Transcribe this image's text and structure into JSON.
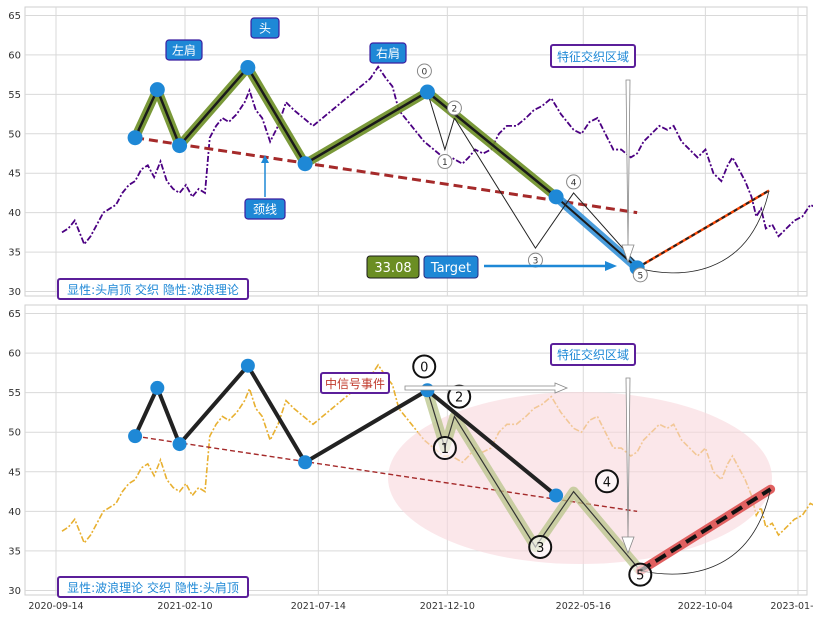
{
  "chart_data": [
    {
      "type": "line",
      "panel": "top",
      "ylim": [
        29.5,
        66
      ],
      "yticks": [
        30,
        35,
        40,
        45,
        50,
        55,
        60,
        65
      ],
      "grid": true,
      "price_series": {
        "name": "",
        "style": "dash-dot",
        "color": "#4b0082",
        "points": [
          [
            0,
            37.5
          ],
          [
            4,
            38
          ],
          [
            8,
            39
          ],
          [
            11,
            37.5
          ],
          [
            14,
            36
          ],
          [
            18,
            37
          ],
          [
            22,
            38.5
          ],
          [
            26,
            40
          ],
          [
            30,
            40.5
          ],
          [
            34,
            41
          ],
          [
            38,
            42.5
          ],
          [
            42,
            43.5
          ],
          [
            46,
            44
          ],
          [
            50,
            45.5
          ],
          [
            54,
            46
          ],
          [
            58,
            44.5
          ],
          [
            62,
            46.5
          ],
          [
            66,
            44
          ],
          [
            70,
            43
          ],
          [
            74,
            42.5
          ],
          [
            78,
            43.5
          ],
          [
            82,
            42
          ],
          [
            86,
            43
          ],
          [
            90,
            42.5
          ],
          [
            93,
            49.5
          ],
          [
            97,
            51
          ],
          [
            101,
            52
          ],
          [
            105,
            51.5
          ],
          [
            110,
            52.5
          ],
          [
            115,
            54
          ],
          [
            118,
            55.5
          ],
          [
            122,
            53
          ],
          [
            126,
            52
          ],
          [
            131,
            49
          ],
          [
            136,
            51
          ],
          [
            141,
            54
          ],
          [
            146,
            53
          ],
          [
            152,
            52
          ],
          [
            158,
            51
          ],
          [
            164,
            52
          ],
          [
            170,
            53
          ],
          [
            176,
            54
          ],
          [
            182,
            55
          ],
          [
            188,
            56
          ],
          [
            194,
            57
          ],
          [
            199,
            58.5
          ],
          [
            204,
            57
          ],
          [
            208,
            56
          ],
          [
            212,
            53
          ],
          [
            216,
            52
          ],
          [
            220,
            51
          ],
          [
            224,
            50
          ],
          [
            228,
            49
          ],
          [
            234,
            48
          ],
          [
            240,
            47
          ],
          [
            245,
            47
          ],
          [
            252,
            46.2
          ],
          [
            256,
            47
          ],
          [
            260,
            48
          ],
          [
            265,
            47.5
          ],
          [
            270,
            48
          ],
          [
            275,
            50
          ],
          [
            280,
            51
          ],
          [
            286,
            51
          ],
          [
            292,
            52
          ],
          [
            297,
            53
          ],
          [
            302,
            53.5
          ],
          [
            308,
            54.5
          ],
          [
            314,
            52.5
          ],
          [
            318,
            51.5
          ],
          [
            322,
            50.5
          ],
          [
            327,
            50
          ],
          [
            332,
            51.5
          ],
          [
            337,
            52
          ],
          [
            342,
            50
          ],
          [
            347,
            48
          ],
          [
            352,
            48
          ],
          [
            358,
            47
          ],
          [
            362,
            47.5
          ],
          [
            366,
            49
          ],
          [
            371,
            50
          ],
          [
            376,
            51
          ],
          [
            381,
            50.5
          ],
          [
            385,
            51
          ],
          [
            390,
            49
          ],
          [
            395,
            48
          ],
          [
            400,
            47
          ],
          [
            405,
            48
          ],
          [
            410,
            45
          ],
          [
            415,
            44
          ],
          [
            419,
            46
          ],
          [
            422,
            47
          ],
          [
            426,
            45.5
          ],
          [
            430,
            44
          ],
          [
            434,
            42
          ],
          [
            437,
            39.5
          ],
          [
            440,
            40.5
          ],
          [
            443,
            38
          ],
          [
            447,
            38.5
          ],
          [
            451,
            37
          ],
          [
            456,
            38
          ],
          [
            461,
            39
          ],
          [
            466,
            39.5
          ],
          [
            471,
            41
          ],
          [
            476,
            40.5
          ],
          [
            481,
            41.5
          ],
          [
            485,
            42.5
          ],
          [
            489,
            41.5
          ],
          [
            493,
            39
          ],
          [
            497,
            36.5
          ],
          [
            502,
            35
          ],
          [
            506,
            33.5
          ],
          [
            509,
            32
          ]
        ]
      },
      "pattern": {
        "color": "#6b8e23",
        "points": [
          [
            46,
            49.5
          ],
          [
            60,
            55.6
          ],
          [
            74,
            48.5
          ],
          [
            117,
            58.4
          ],
          [
            153,
            46.2
          ],
          [
            230,
            55.3
          ],
          [
            311,
            42
          ],
          [
            362,
            33
          ]
        ]
      },
      "extra_leg": {
        "color": "#2a8cd6",
        "points": [
          [
            311,
            42
          ],
          [
            362,
            33
          ]
        ]
      },
      "neckline": {
        "color": "#a52a2a",
        "points": [
          [
            46,
            49.5
          ],
          [
            362,
            40
          ]
        ]
      },
      "wave_lines": [
        [
          [
            230,
            55.3
          ],
          [
            241,
            48
          ],
          [
            247,
            52
          ]
        ],
        [
          [
            247,
            52
          ],
          [
            298,
            35.5
          ],
          [
            322,
            42.5
          ],
          [
            364,
            33
          ]
        ]
      ],
      "projection": {
        "color": "#ff4500",
        "points": [
          [
            362,
            33
          ],
          [
            445,
            42.8
          ]
        ]
      },
      "arc": {
        "from": [
          362,
          33
        ],
        "to": [
          445,
          42.8
        ],
        "depth": 33.5
      },
      "markers": [
        [
          46,
          49.5
        ],
        [
          60,
          55.6
        ],
        [
          74,
          48.5
        ],
        [
          117,
          58.4
        ],
        [
          153,
          46.2
        ],
        [
          230,
          55.3
        ],
        [
          311,
          42
        ],
        [
          362,
          33
        ]
      ],
      "wave_labels": [
        {
          "text": "0",
          "x": 230,
          "y": 55.3
        },
        {
          "text": "1",
          "x": 241,
          "y": 48
        },
        {
          "text": "2",
          "x": 247,
          "y": 52
        },
        {
          "text": "3",
          "x": 298,
          "y": 35.5
        },
        {
          "text": "4",
          "x": 322,
          "y": 42.5
        },
        {
          "text": "5",
          "x": 364,
          "y": 33
        }
      ],
      "annotations": {
        "left_shoulder": "左肩",
        "head": "头",
        "right_shoulder": "右肩",
        "neckline": "颈线",
        "zone": "特征交织区域",
        "value": "33.08",
        "target": "Target"
      },
      "legend": "显性:头肩顶 交织 隐性:波浪理论"
    },
    {
      "type": "line",
      "panel": "bottom",
      "ylim": [
        29.5,
        66
      ],
      "yticks": [
        30,
        35,
        40,
        45,
        50,
        55,
        60,
        65
      ],
      "grid": true,
      "price_series": {
        "name": "",
        "style": "dash-dot",
        "color": "#e8b030"
      },
      "wave_series": {
        "color": "#222222",
        "points": [
          [
            230,
            55.3
          ],
          [
            241,
            48
          ],
          [
            247,
            52
          ],
          [
            298,
            35.5
          ],
          [
            322,
            42.5
          ],
          [
            364,
            32.5
          ]
        ]
      },
      "hs_series": {
        "color": "#222222",
        "points": [
          [
            46,
            49.5
          ],
          [
            60,
            55.6
          ],
          [
            74,
            48.5
          ],
          [
            117,
            58.4
          ],
          [
            153,
            46.2
          ],
          [
            230,
            55.3
          ],
          [
            311,
            42
          ]
        ]
      },
      "neckline": {
        "color": "#a52a2a",
        "points": [
          [
            46,
            49.5
          ],
          [
            362,
            40
          ]
        ]
      },
      "projection": {
        "color": "#e06060",
        "points": [
          [
            364,
            32.5
          ],
          [
            446,
            42.8
          ]
        ]
      },
      "arc": {
        "from": [
          364,
          32.5
        ],
        "to": [
          446,
          42.8
        ],
        "depth": 33.5
      },
      "markers": [
        [
          46,
          49.5
        ],
        [
          60,
          55.6
        ],
        [
          74,
          48.5
        ],
        [
          117,
          58.4
        ],
        [
          153,
          46.2
        ],
        [
          230,
          55.3
        ],
        [
          311,
          42
        ]
      ],
      "wave_labels": [
        {
          "text": "0",
          "x": 228,
          "y": 58.3
        },
        {
          "text": "1",
          "x": 241,
          "y": 48
        },
        {
          "text": "2",
          "x": 250,
          "y": 54.5
        },
        {
          "text": "3",
          "x": 301,
          "y": 35.5
        },
        {
          "text": "4",
          "x": 343,
          "y": 43.8
        },
        {
          "text": "5",
          "x": 364,
          "y": 32
        }
      ],
      "annotations": {
        "event": "中信号事件",
        "zone": "特征交织区域"
      },
      "legend": "显性:波浪理论 交织 隐性:头肩顶"
    }
  ],
  "x_axis": {
    "tick_labels": [
      "2020-09-14",
      "2021-02-10",
      "2021-07-14",
      "2021-12-10",
      "2022-05-16",
      "2022-10-04",
      "2023-01-19"
    ],
    "tick_days": [
      0,
      149,
      303,
      452,
      609,
      750,
      857
    ]
  }
}
